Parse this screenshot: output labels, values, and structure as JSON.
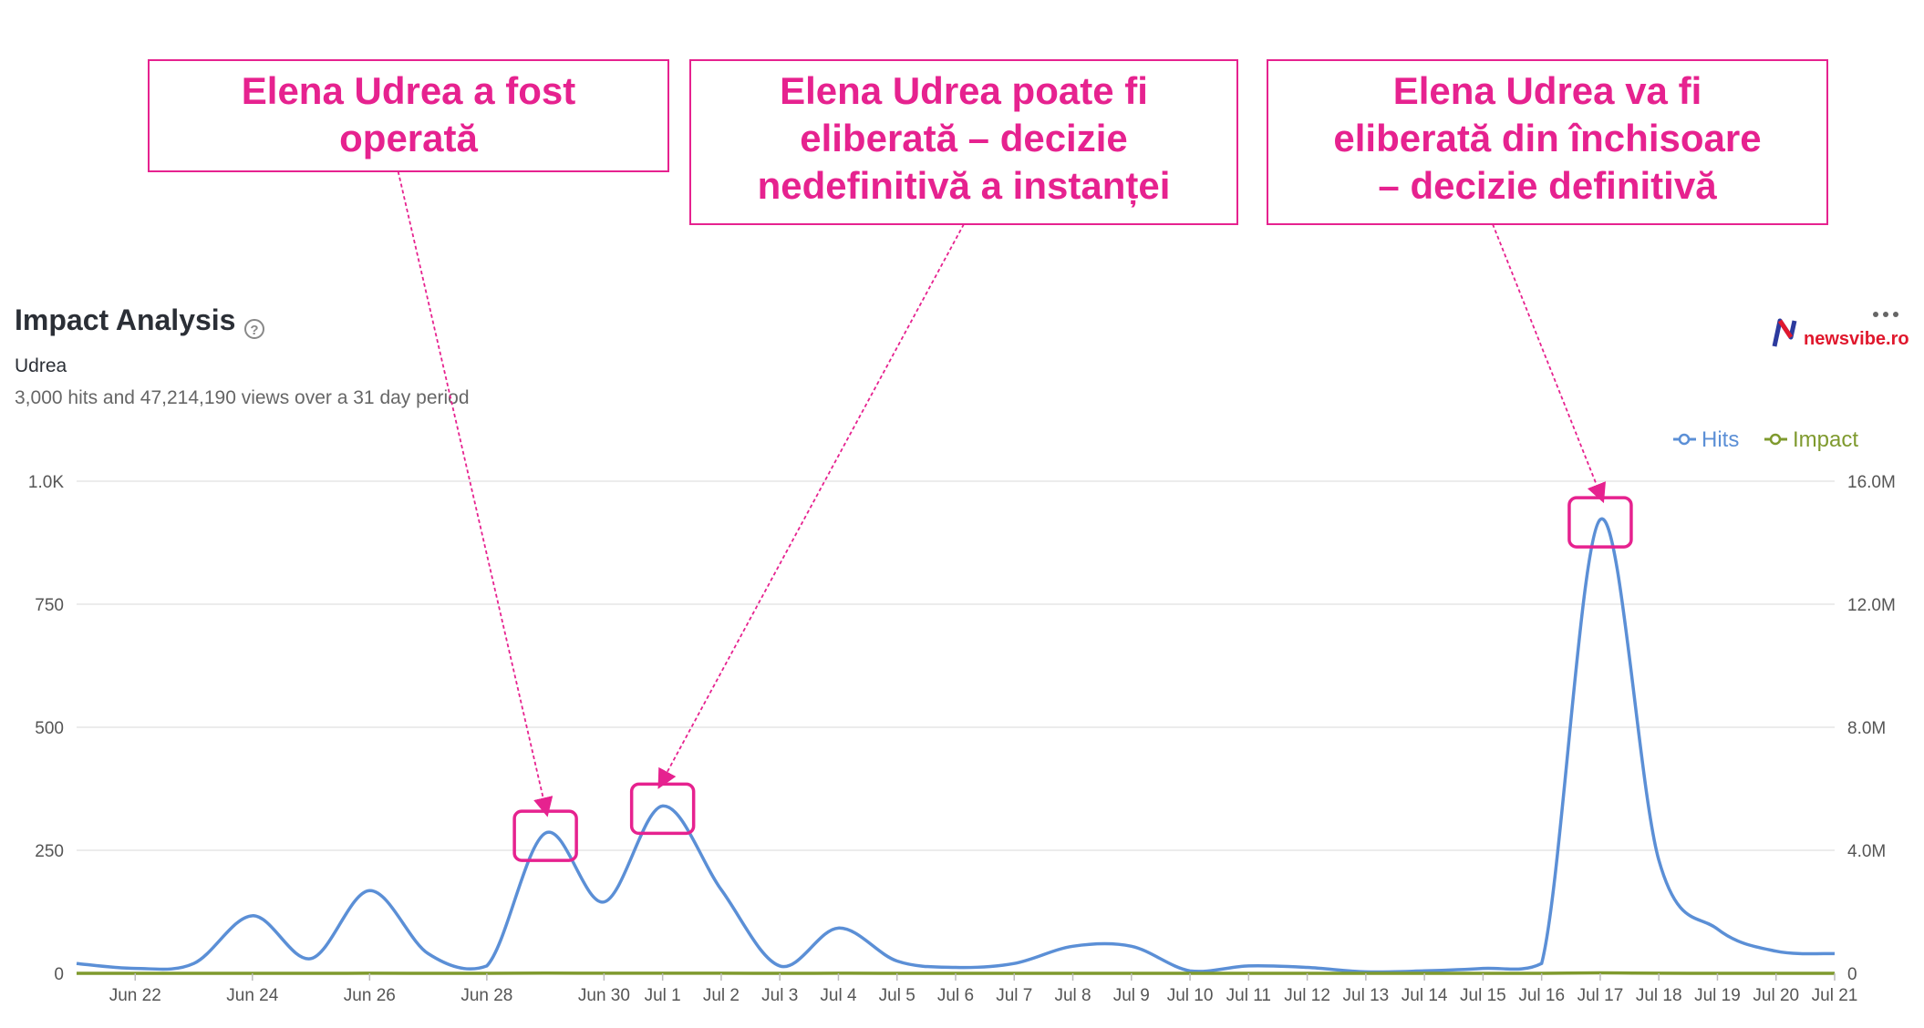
{
  "header": {
    "title": "Impact Analysis",
    "help_icon": "help-circle-icon",
    "subtitle": "Udrea",
    "summary": "3,000 hits and 47,214,190 views over a 31 day period",
    "more_icon": "more-horizontal-icon"
  },
  "brand": {
    "logo_icon": "newsvibe-logo",
    "name": "newsvibe.ro",
    "colors": {
      "n_red": "#e0182d",
      "n_blue": "#2c3a9e",
      "text": "#e0182d"
    }
  },
  "annotations": [
    {
      "lines": [
        "Elena Udrea a fost",
        "operată"
      ],
      "point_date": "Jun 29"
    },
    {
      "lines": [
        "Elena Udrea poate fi",
        "eliberată – decizie",
        "nedefinitivă a instanței"
      ],
      "point_date": "Jul 1"
    },
    {
      "lines": [
        "Elena Udrea va fi",
        "eliberată din închisoare",
        "– decizie definitivă"
      ],
      "point_date": "Jul 17"
    }
  ],
  "colors": {
    "hits": "#5b8fd6",
    "impact": "#7f9a2e",
    "annotation": "#e6228f",
    "grid": "#e6e6e6",
    "axis_text": "#555555"
  },
  "chart_data": {
    "type": "area",
    "x": [
      "Jun 21",
      "Jun 22",
      "Jun 23",
      "Jun 24",
      "Jun 25",
      "Jun 26",
      "Jun 27",
      "Jun 28",
      "Jun 29",
      "Jun 30",
      "Jul 1",
      "Jul 2",
      "Jul 3",
      "Jul 4",
      "Jul 5",
      "Jul 6",
      "Jul 7",
      "Jul 8",
      "Jul 9",
      "Jul 10",
      "Jul 11",
      "Jul 12",
      "Jul 13",
      "Jul 14",
      "Jul 15",
      "Jul 16",
      "Jul 17",
      "Jul 18",
      "Jul 19",
      "Jul 20",
      "Jul 21"
    ],
    "x_tick_labels": [
      "Jun 22",
      "Jun 24",
      "Jun 26",
      "Jun 28",
      "Jun 30",
      "Jul 1",
      "Jul 2",
      "Jul 3",
      "Jul 4",
      "Jul 5",
      "Jul 6",
      "Jul 7",
      "Jul 8",
      "Jul 9",
      "Jul 10",
      "Jul 11",
      "Jul 12",
      "Jul 13",
      "Jul 14",
      "Jul 15",
      "Jul 16",
      "Jul 17",
      "Jul 18",
      "Jul 19",
      "Jul 20",
      "Jul 21"
    ],
    "series": [
      {
        "name": "Hits",
        "axis": "left",
        "values": [
          20,
          10,
          20,
          117,
          30,
          168,
          40,
          15,
          285,
          145,
          340,
          170,
          15,
          92,
          25,
          12,
          20,
          55,
          55,
          5,
          15,
          12,
          3,
          5,
          10,
          20,
          922,
          230,
          90,
          45,
          40
        ]
      },
      {
        "name": "Impact",
        "axis": "right",
        "values": [
          500,
          150,
          250,
          1600,
          300,
          2550,
          400,
          250,
          5950,
          2250,
          5300,
          2700,
          150,
          2400,
          200,
          200,
          400,
          850,
          1800,
          100,
          700,
          150,
          50,
          100,
          200,
          300,
          14300,
          2000,
          800,
          700,
          1200
        ]
      }
    ],
    "y_left": {
      "ylim": [
        0,
        1000
      ],
      "ticks": [
        0,
        250,
        500,
        750,
        1000
      ],
      "tick_labels": [
        "0",
        "250",
        "500",
        "750",
        "1.0K"
      ]
    },
    "y_right": {
      "ylim": [
        0,
        16000000
      ],
      "ticks": [
        0,
        4000000,
        8000000,
        12000000,
        16000000
      ],
      "tick_labels": [
        "0",
        "4.0M",
        "8.0M",
        "12.0M",
        "16.0M"
      ]
    },
    "legend": {
      "position": "top-right",
      "entries": [
        "Hits",
        "Impact"
      ]
    },
    "grid": true
  }
}
